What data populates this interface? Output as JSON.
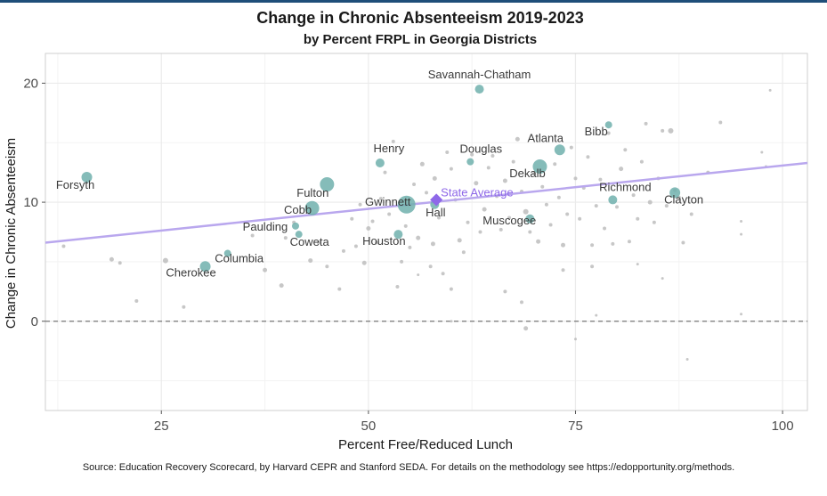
{
  "chart_data": {
    "type": "scatter",
    "title": "Change in Chronic Absenteeism 2019-2023",
    "subtitle": "by Percent FRPL in Georgia Districts",
    "xlabel": "Percent Free/Reduced Lunch",
    "ylabel": "Change in Chronic Absenteeism",
    "xlim": [
      11,
      103
    ],
    "ylim": [
      -7.5,
      22.5
    ],
    "x_ticks": [
      25,
      50,
      75,
      100
    ],
    "y_ticks": [
      0,
      10,
      20
    ],
    "grid": true,
    "reference_line": {
      "y": 0,
      "style": "dashed"
    },
    "trend_line": {
      "x": [
        11,
        103
      ],
      "y": [
        6.6,
        13.3
      ],
      "color": "#b9a7ee"
    },
    "state_average": {
      "label": "State Average",
      "x": 58.2,
      "y": 10.2,
      "color": "#8e68e8"
    },
    "highlight_color": "#70b0ad",
    "other_color": "#bdbdbd",
    "labeled_districts": [
      {
        "name": "Savannah-Chatham",
        "x": 63.4,
        "y": 19.5,
        "size": 5
      },
      {
        "name": "Bibb",
        "x": 79.0,
        "y": 16.5,
        "size": 4
      },
      {
        "name": "Atlanta",
        "x": 73.1,
        "y": 14.4,
        "size": 6
      },
      {
        "name": "Henry",
        "x": 51.4,
        "y": 13.3,
        "size": 5
      },
      {
        "name": "Douglas",
        "x": 62.3,
        "y": 13.4,
        "size": 4
      },
      {
        "name": "Dekalb",
        "x": 70.7,
        "y": 13.0,
        "size": 8
      },
      {
        "name": "Forsyth",
        "x": 16.0,
        "y": 12.1,
        "size": 6
      },
      {
        "name": "Fulton",
        "x": 45.0,
        "y": 11.5,
        "size": 8
      },
      {
        "name": "Richmond",
        "x": 79.5,
        "y": 10.2,
        "size": 5
      },
      {
        "name": "Clayton",
        "x": 87.0,
        "y": 10.8,
        "size": 6
      },
      {
        "name": "Gwinnett",
        "x": 54.6,
        "y": 9.8,
        "size": 10
      },
      {
        "name": "Hall",
        "x": 58.0,
        "y": 9.8,
        "size": 5
      },
      {
        "name": "Cobb",
        "x": 43.2,
        "y": 9.5,
        "size": 8
      },
      {
        "name": "Paulding",
        "x": 41.2,
        "y": 8.0,
        "size": 4
      },
      {
        "name": "Muscogee",
        "x": 69.5,
        "y": 8.6,
        "size": 5
      },
      {
        "name": "Coweta",
        "x": 41.6,
        "y": 7.3,
        "size": 4
      },
      {
        "name": "Houston",
        "x": 53.6,
        "y": 7.3,
        "size": 5
      },
      {
        "name": "Columbia",
        "x": 33.0,
        "y": 5.7,
        "size": 4
      },
      {
        "name": "Cherokee",
        "x": 30.3,
        "y": 4.6,
        "size": 6
      }
    ],
    "other_districts": [
      [
        13.2,
        6.3,
        2
      ],
      [
        19.0,
        5.2,
        2.5
      ],
      [
        20.0,
        4.9,
        2
      ],
      [
        22.0,
        1.7,
        2
      ],
      [
        25.5,
        5.1,
        3
      ],
      [
        27.7,
        1.2,
        2
      ],
      [
        36.0,
        7.2,
        2
      ],
      [
        37.5,
        4.3,
        2.5
      ],
      [
        39.5,
        3.0,
        2.5
      ],
      [
        40.0,
        7.0,
        2
      ],
      [
        41.0,
        8.3,
        2
      ],
      [
        43.0,
        5.1,
        2.5
      ],
      [
        44.0,
        6.6,
        2
      ],
      [
        45.0,
        4.6,
        2
      ],
      [
        46.5,
        2.7,
        2
      ],
      [
        47.0,
        5.9,
        2
      ],
      [
        48.0,
        8.6,
        2
      ],
      [
        48.5,
        6.3,
        2
      ],
      [
        49.0,
        9.8,
        2
      ],
      [
        49.5,
        4.9,
        2.5
      ],
      [
        50.0,
        7.8,
        2.5
      ],
      [
        50.5,
        8.4,
        2
      ],
      [
        51.0,
        6.6,
        2
      ],
      [
        51.5,
        10.3,
        2
      ],
      [
        52.0,
        12.5,
        2
      ],
      [
        52.5,
        9.0,
        2
      ],
      [
        53.0,
        15.1,
        2
      ],
      [
        53.5,
        2.9,
        2
      ],
      [
        54.0,
        5.0,
        2
      ],
      [
        54.5,
        8.0,
        2
      ],
      [
        55.0,
        6.2,
        2
      ],
      [
        55.5,
        11.5,
        2
      ],
      [
        56.0,
        7.0,
        2.5
      ],
      [
        56.5,
        13.2,
        2.5
      ],
      [
        57.0,
        10.8,
        2
      ],
      [
        57.5,
        4.6,
        2
      ],
      [
        57.8,
        6.5,
        2.5
      ],
      [
        58.0,
        12.0,
        2.5
      ],
      [
        58.5,
        8.7,
        2
      ],
      [
        59.0,
        4.0,
        2
      ],
      [
        59.5,
        14.2,
        2
      ],
      [
        60.0,
        12.8,
        2
      ],
      [
        60.5,
        10.2,
        2
      ],
      [
        61.0,
        6.8,
        2.5
      ],
      [
        61.5,
        5.8,
        2
      ],
      [
        62.0,
        8.3,
        2
      ],
      [
        62.5,
        14.0,
        2
      ],
      [
        63.0,
        11.6,
        2.5
      ],
      [
        63.5,
        7.5,
        2
      ],
      [
        64.0,
        9.4,
        2.5
      ],
      [
        64.5,
        12.9,
        2
      ],
      [
        65.0,
        13.9,
        2
      ],
      [
        65.5,
        10.5,
        2
      ],
      [
        66.0,
        7.7,
        2
      ],
      [
        66.5,
        11.8,
        2.5
      ],
      [
        67.0,
        8.7,
        2
      ],
      [
        67.5,
        13.4,
        2
      ],
      [
        68.0,
        15.3,
        2.5
      ],
      [
        68.5,
        10.9,
        2
      ],
      [
        69.0,
        9.2,
        3
      ],
      [
        69.5,
        7.5,
        2
      ],
      [
        70.0,
        12.4,
        2
      ],
      [
        70.5,
        6.7,
        2.5
      ],
      [
        71.0,
        11.3,
        2
      ],
      [
        71.5,
        9.8,
        2
      ],
      [
        72.0,
        8.1,
        2
      ],
      [
        72.5,
        13.2,
        2
      ],
      [
        73.0,
        10.4,
        2
      ],
      [
        73.5,
        6.4,
        2.5
      ],
      [
        74.0,
        9.0,
        2
      ],
      [
        74.5,
        14.6,
        2
      ],
      [
        75.0,
        12.0,
        2
      ],
      [
        75.5,
        8.6,
        2
      ],
      [
        76.0,
        11.2,
        2
      ],
      [
        76.5,
        13.8,
        2
      ],
      [
        77.0,
        6.4,
        2
      ],
      [
        77.5,
        9.7,
        2
      ],
      [
        78.0,
        11.9,
        2
      ],
      [
        78.5,
        7.8,
        2
      ],
      [
        79.0,
        15.8,
        2
      ],
      [
        79.5,
        6.5,
        2
      ],
      [
        80.0,
        9.6,
        2
      ],
      [
        80.5,
        12.8,
        2.5
      ],
      [
        81.0,
        14.4,
        2
      ],
      [
        81.5,
        6.7,
        2
      ],
      [
        82.0,
        10.6,
        2
      ],
      [
        82.5,
        8.6,
        2
      ],
      [
        83.0,
        13.4,
        2
      ],
      [
        83.5,
        16.6,
        2
      ],
      [
        84.0,
        10.0,
        2.5
      ],
      [
        84.5,
        8.3,
        2
      ],
      [
        85.0,
        12.0,
        2
      ],
      [
        85.5,
        16.0,
        2
      ],
      [
        86.0,
        9.7,
        2
      ],
      [
        86.5,
        16.0,
        3
      ],
      [
        87.0,
        11.0,
        2
      ],
      [
        87.5,
        10.4,
        2
      ],
      [
        88.0,
        6.6,
        2
      ],
      [
        89.0,
        9.0,
        2
      ],
      [
        91.0,
        12.5,
        2
      ],
      [
        92.5,
        16.7,
        2
      ],
      [
        95.0,
        7.3,
        1.5
      ],
      [
        95.0,
        8.4,
        1.5
      ],
      [
        97.5,
        14.2,
        1.5
      ],
      [
        98.5,
        19.4,
        1.5
      ],
      [
        98.0,
        13.0,
        1.5
      ],
      [
        60.0,
        0.0,
        1.5
      ],
      [
        66.5,
        2.5,
        2
      ],
      [
        68.5,
        1.6,
        2
      ],
      [
        69.0,
        -0.6,
        2.5
      ],
      [
        73.5,
        4.3,
        2
      ],
      [
        75.0,
        -1.5,
        1.5
      ],
      [
        77.0,
        4.6,
        2
      ],
      [
        77.5,
        0.5,
        1.5
      ],
      [
        82.5,
        4.8,
        1.5
      ],
      [
        85.5,
        3.6,
        1.5
      ],
      [
        88.5,
        -3.2,
        1.5
      ],
      [
        95.0,
        0.6,
        1.5
      ],
      [
        56.0,
        3.9,
        1.5
      ],
      [
        60.0,
        2.7,
        2
      ]
    ]
  },
  "caption": "Source: Education Recovery Scorecard, by Harvard CEPR and Stanford SEDA. For details on the methodology see https://edopportunity.org/methods."
}
